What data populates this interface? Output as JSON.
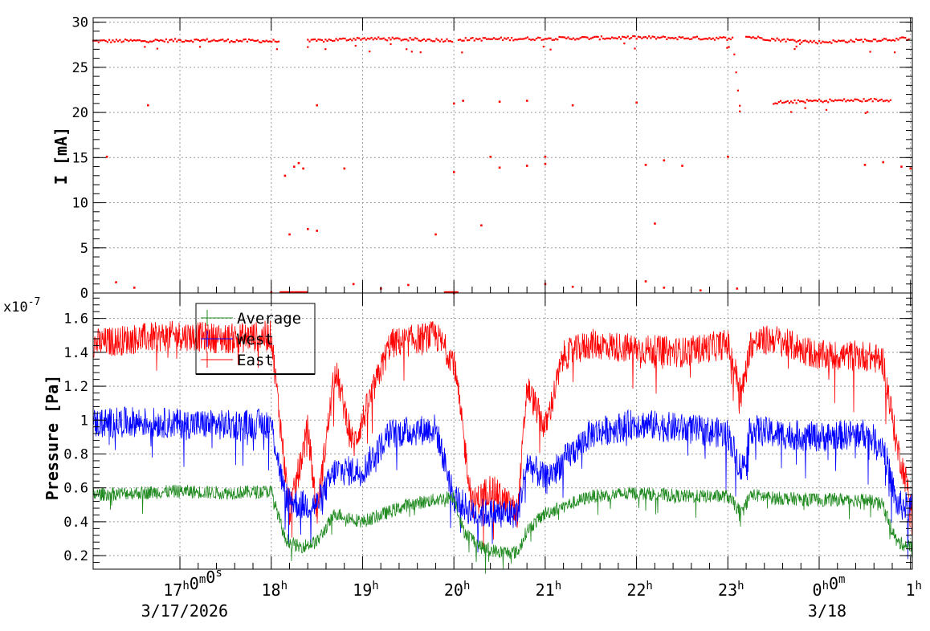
{
  "chart_data": [
    {
      "id": "current",
      "type": "scatter",
      "ylabel": "I [mA]",
      "ylim": [
        0,
        30.5
      ],
      "yticks": [
        0,
        5,
        10,
        15,
        20,
        25,
        30
      ],
      "xlim_hours": [
        16.05,
        25.02
      ],
      "grid": true,
      "color": "#ff0000",
      "segments": [
        {
          "x": [
            16.05,
            17.2,
            18.1
          ],
          "y": [
            27.9,
            28.0,
            27.9
          ]
        },
        {
          "x": [
            18.4,
            19.0,
            20.0
          ],
          "y": [
            27.9,
            28.2,
            28.0
          ]
        },
        {
          "x": [
            20.05,
            21.0,
            22.0,
            23.05
          ],
          "y": [
            28.1,
            28.2,
            28.3,
            28.2
          ]
        },
        {
          "x": [
            23.05,
            23.15
          ],
          "y": [
            28.2,
            18.8
          ]
        },
        {
          "x": [
            23.2,
            23.5,
            24.0,
            24.5,
            25.0
          ],
          "y": [
            28.4,
            28.1,
            27.8,
            28.0,
            28.2
          ]
        },
        {
          "x": [
            23.5,
            24.0,
            24.8
          ],
          "y": [
            21.1,
            21.3,
            21.4
          ]
        }
      ],
      "points": [
        [
          16.2,
          15.1
        ],
        [
          16.65,
          20.8
        ],
        [
          18.25,
          14.0
        ],
        [
          18.3,
          14.4
        ],
        [
          18.35,
          13.8
        ],
        [
          18.15,
          13.0
        ],
        [
          18.5,
          20.8
        ],
        [
          18.8,
          13.8
        ],
        [
          18.2,
          6.5
        ],
        [
          18.4,
          7.1
        ],
        [
          18.5,
          6.9
        ],
        [
          20.0,
          13.4
        ],
        [
          20.0,
          21.0
        ],
        [
          20.1,
          21.3
        ],
        [
          20.5,
          21.2
        ],
        [
          20.8,
          21.3
        ],
        [
          20.4,
          15.1
        ],
        [
          20.5,
          13.9
        ],
        [
          20.8,
          14.1
        ],
        [
          21.0,
          14.3
        ],
        [
          21.0,
          15.1
        ],
        [
          21.3,
          20.8
        ],
        [
          22.0,
          21.1
        ],
        [
          22.1,
          14.2
        ],
        [
          22.3,
          14.7
        ],
        [
          22.5,
          14.1
        ],
        [
          23.0,
          15.1
        ],
        [
          20.3,
          7.5
        ],
        [
          22.2,
          7.7
        ],
        [
          19.8,
          6.5
        ],
        [
          24.5,
          14.2
        ],
        [
          24.7,
          14.5
        ],
        [
          24.9,
          14.0
        ],
        [
          25.0,
          13.8
        ],
        [
          16.3,
          1.2
        ],
        [
          16.5,
          0.6
        ],
        [
          18.0,
          0.1
        ],
        [
          18.9,
          1.0
        ],
        [
          19.2,
          0.5
        ],
        [
          19.5,
          0.9
        ],
        [
          20.0,
          0.0
        ],
        [
          21.0,
          1.0
        ],
        [
          21.3,
          0.7
        ],
        [
          22.1,
          1.3
        ],
        [
          22.3,
          0.6
        ],
        [
          22.7,
          0.3
        ],
        [
          23.1,
          0.5
        ]
      ]
    },
    {
      "id": "pressure",
      "type": "line",
      "ylabel": "Pressure [Pa]",
      "yexponent": "x10",
      "yexponent_power": "-7",
      "ylim": [
        0.12,
        1.75
      ],
      "yticks": [
        0.2,
        0.4,
        0.6,
        0.8,
        1,
        1.2,
        1.4,
        1.6
      ],
      "xlim_hours": [
        16.05,
        25.02
      ],
      "grid": true,
      "legend": {
        "position": "top-left",
        "entries": [
          "Average",
          "West",
          "East"
        ]
      },
      "series": [
        {
          "name": "East",
          "color": "#ff0000",
          "noise": 0.09,
          "x": [
            16.05,
            16.5,
            17.0,
            17.5,
            18.0,
            18.2,
            18.4,
            18.5,
            18.7,
            18.9,
            19.3,
            19.8,
            20.0,
            20.2,
            20.4,
            20.7,
            20.8,
            21.0,
            21.2,
            21.5,
            22.0,
            22.5,
            23.0,
            23.15,
            23.25,
            23.5,
            24.0,
            24.5,
            24.7,
            24.85,
            25.02
          ],
          "y": [
            1.45,
            1.48,
            1.5,
            1.48,
            1.5,
            0.45,
            0.95,
            0.45,
            1.3,
            0.85,
            1.45,
            1.5,
            1.35,
            0.5,
            0.6,
            0.45,
            1.2,
            0.95,
            1.38,
            1.45,
            1.42,
            1.4,
            1.45,
            1.15,
            1.45,
            1.48,
            1.38,
            1.38,
            1.35,
            0.85,
            0.5
          ]
        },
        {
          "name": "West",
          "color": "#0000ff",
          "noise": 0.09,
          "x": [
            16.05,
            16.5,
            17.0,
            17.5,
            18.0,
            18.15,
            18.3,
            18.5,
            18.7,
            19.0,
            19.3,
            19.8,
            20.0,
            20.2,
            20.5,
            20.7,
            20.8,
            21.0,
            21.5,
            22.0,
            22.5,
            23.0,
            23.15,
            23.25,
            23.5,
            24.0,
            24.5,
            24.7,
            24.85,
            25.02
          ],
          "y": [
            0.98,
            0.99,
            0.98,
            0.97,
            0.98,
            0.55,
            0.5,
            0.5,
            0.7,
            0.7,
            0.92,
            0.95,
            0.55,
            0.45,
            0.45,
            0.45,
            0.75,
            0.65,
            0.92,
            0.98,
            0.95,
            0.92,
            0.7,
            0.95,
            0.92,
            0.9,
            0.92,
            0.85,
            0.5,
            0.48
          ]
        },
        {
          "name": "Average",
          "color": "#228b22",
          "noise": 0.04,
          "x": [
            16.05,
            16.5,
            17.0,
            17.5,
            18.0,
            18.15,
            18.3,
            18.5,
            18.7,
            19.0,
            19.5,
            20.0,
            20.1,
            20.3,
            20.5,
            20.7,
            20.8,
            21.0,
            21.5,
            22.0,
            22.5,
            23.0,
            23.15,
            23.25,
            23.5,
            24.0,
            24.5,
            24.7,
            24.85,
            25.02
          ],
          "y": [
            0.56,
            0.57,
            0.58,
            0.57,
            0.58,
            0.3,
            0.25,
            0.28,
            0.45,
            0.4,
            0.5,
            0.55,
            0.35,
            0.25,
            0.22,
            0.22,
            0.35,
            0.45,
            0.55,
            0.57,
            0.55,
            0.55,
            0.45,
            0.56,
            0.54,
            0.53,
            0.53,
            0.5,
            0.28,
            0.25
          ]
        }
      ]
    }
  ],
  "x_axis": {
    "ticks": [
      {
        "hour": 17,
        "label": "17",
        "sup": "h",
        "label2": "0",
        "sup2": "m",
        "label3": "0",
        "sup3": "s",
        "date": "3/17/2026"
      },
      {
        "hour": 18,
        "label": "18",
        "sup": "h"
      },
      {
        "hour": 19,
        "label": "19",
        "sup": "h"
      },
      {
        "hour": 20,
        "label": "20",
        "sup": "h"
      },
      {
        "hour": 21,
        "label": "21",
        "sup": "h"
      },
      {
        "hour": 22,
        "label": "22",
        "sup": "h"
      },
      {
        "hour": 23,
        "label": "23",
        "sup": "h"
      },
      {
        "hour": 24,
        "label": "0",
        "sup": "h",
        "label2": "0",
        "sup2": "m",
        "date": "3/18"
      },
      {
        "hour": 25,
        "label": "1",
        "sup": "h"
      }
    ]
  }
}
